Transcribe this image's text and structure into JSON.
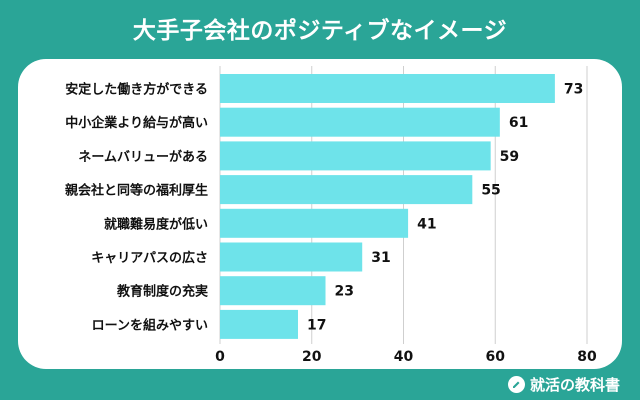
{
  "title": "大手子会社のポジティブなイメージ",
  "brand": {
    "name": "就活の教科書",
    "icon": "pencil-circle-icon"
  },
  "colors": {
    "background": "#2aa597",
    "bar": "#6ee3ea",
    "card": "#ffffff",
    "text": "#111111"
  },
  "chart_data": {
    "type": "bar",
    "orientation": "horizontal",
    "categories": [
      "安定した働き方ができる",
      "中小企業より給与が高い",
      "ネームバリューがある",
      "親会社と同等の福利厚生",
      "就職難易度が低い",
      "キャリアパスの広さ",
      "教育制度の充実",
      "ローンを組みやすい"
    ],
    "values": [
      73,
      61,
      59,
      55,
      41,
      31,
      23,
      17
    ],
    "xlim": [
      0,
      80
    ],
    "xticks": [
      0,
      20,
      40,
      60,
      80
    ],
    "grid": true,
    "legend": "none"
  }
}
